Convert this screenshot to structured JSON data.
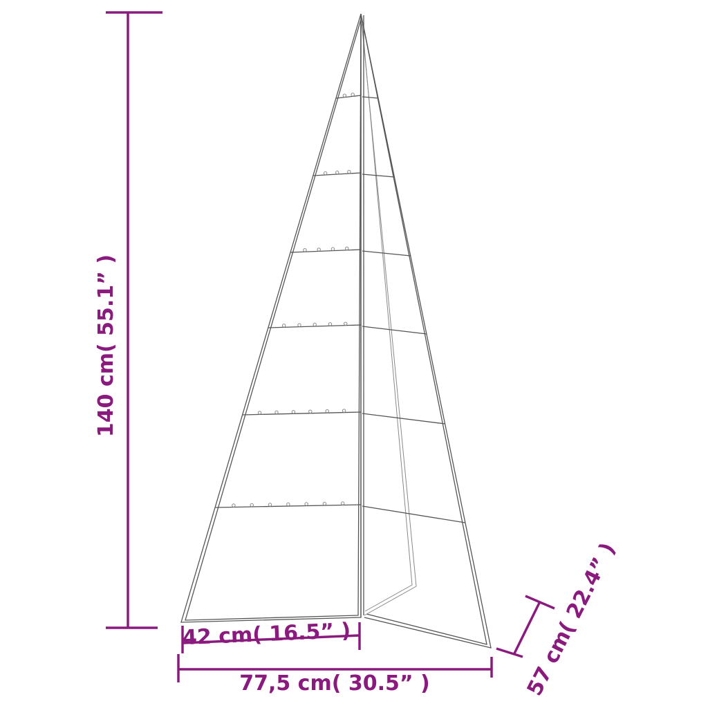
{
  "colors": {
    "dimension": "#8b1a7f",
    "frame": "#555555"
  },
  "dimensions": {
    "height": "140 cm( 55.1” )",
    "panel_width": "42 cm( 16.5” )",
    "total_width": "77,5 cm( 30.5” )",
    "depth": "57 cm( 22.4” )"
  }
}
